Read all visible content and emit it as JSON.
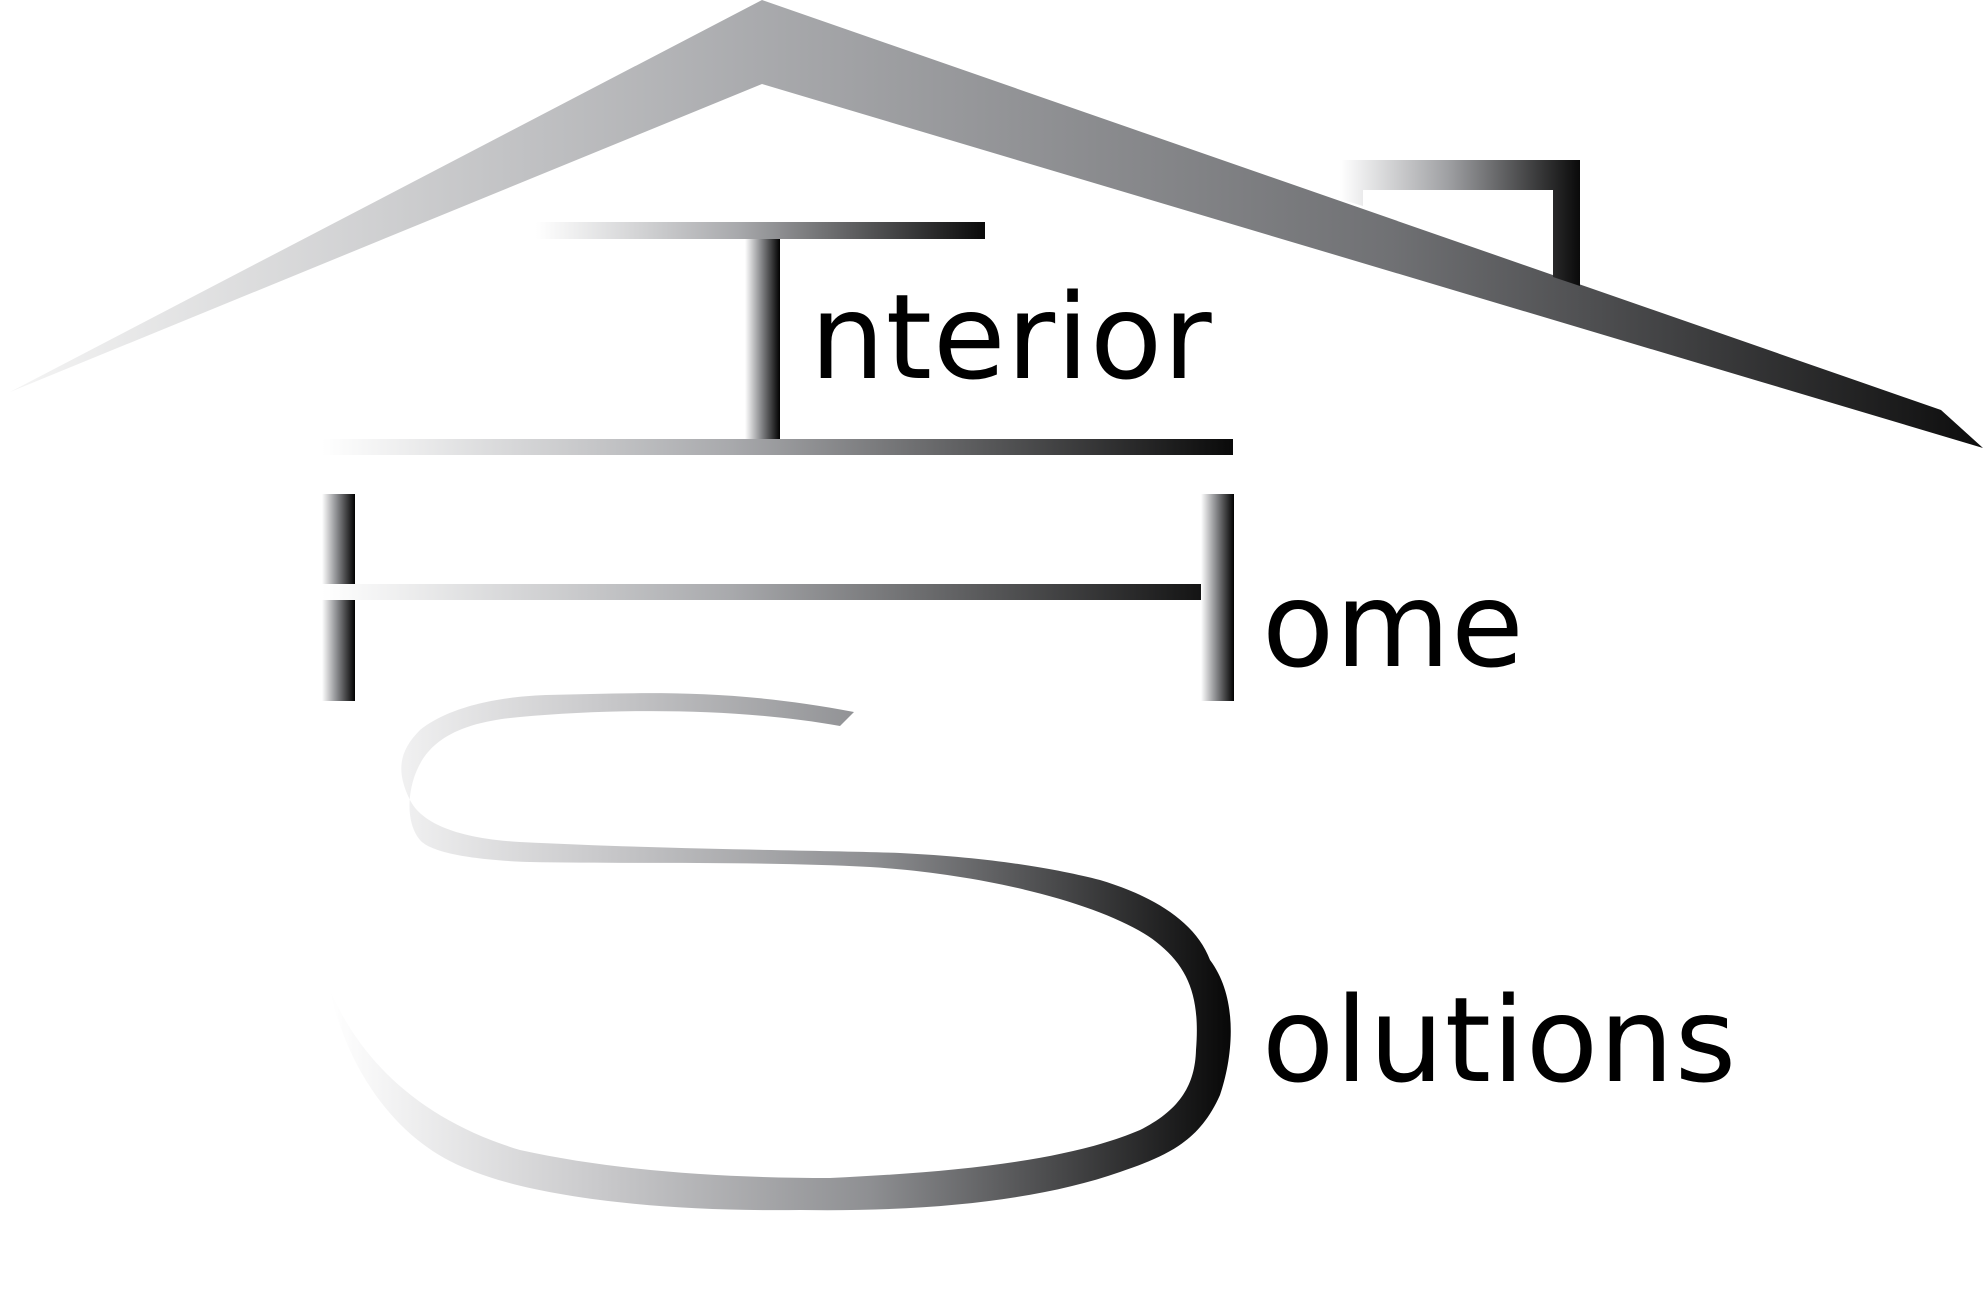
{
  "logo": {
    "alt": "Interior Home Solutions",
    "word_rest_1": "nterior",
    "word_rest_2": "ome",
    "word_rest_3": "olutions",
    "initials": [
      "I",
      "H",
      "S"
    ]
  },
  "colors": {
    "ink": "#000000",
    "gradient_light": "#f2f2f2",
    "gradient_mid": "#a7a8ab",
    "gradient_dark": "#111111",
    "background": "#ffffff"
  }
}
